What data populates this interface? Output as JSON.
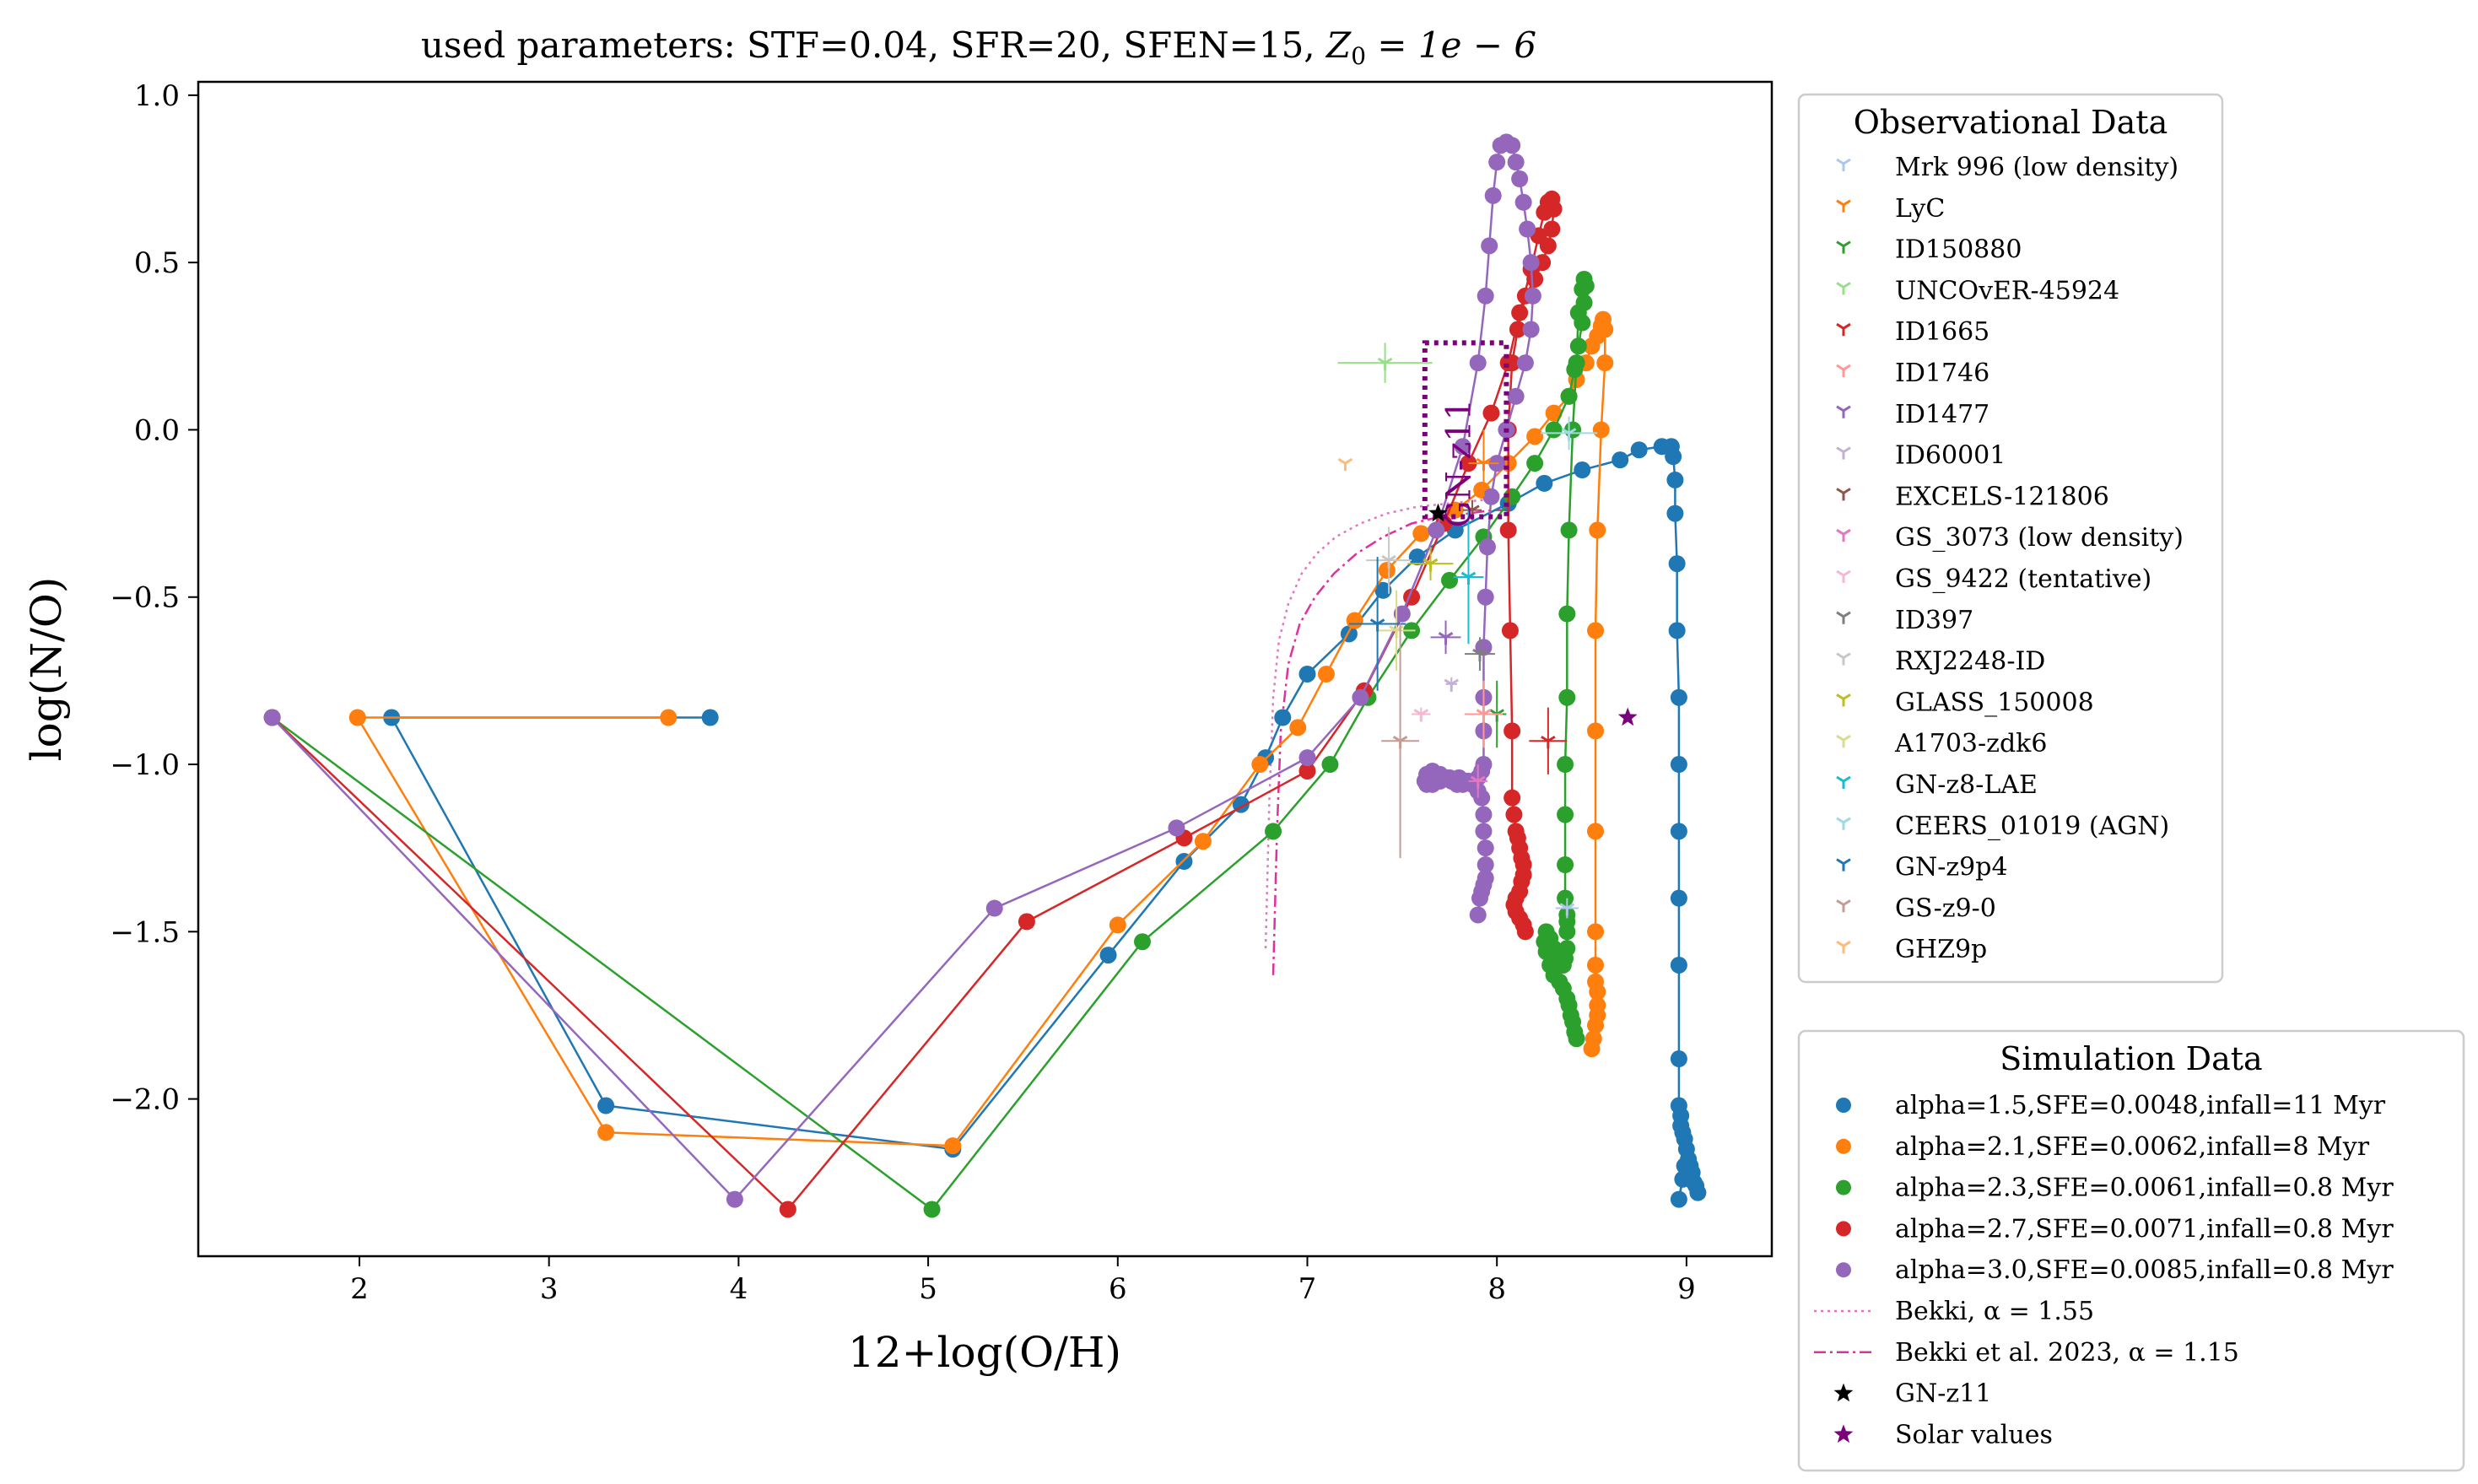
{
  "chart_data": {
    "type": "scatter",
    "title_prefix": "used parameters: STF=0.04, SFR=20, SFEN=15, ",
    "title_math": "Z",
    "title_math_sub": "0",
    "title_math_rest": " = 1e − 6",
    "xlabel": "12+log(O/H)",
    "ylabel": "log(N/O)",
    "xlim": [
      1.15,
      9.45
    ],
    "ylim": [
      -2.47,
      1.04
    ],
    "xticks": [
      2,
      3,
      4,
      5,
      6,
      7,
      8,
      9
    ],
    "xtick_labels": [
      "2",
      "3",
      "4",
      "5",
      "6",
      "7",
      "8",
      "9"
    ],
    "yticks": [
      -2.0,
      -1.5,
      -1.0,
      -0.5,
      0.0,
      0.5,
      1.0
    ],
    "ytick_labels": [
      "−2.0",
      "−1.5",
      "−1.0",
      "−0.5",
      "0.0",
      "0.5",
      "1.0"
    ],
    "grid": false,
    "annotation": {
      "text": "GN-z11",
      "x": 7.86,
      "y": -0.1
    },
    "gnz11_box": {
      "x": [
        7.62,
        8.05
      ],
      "y": [
        -0.26,
        0.26
      ],
      "color": "#7b007b"
    },
    "observational_legend": {
      "title": "Observational Data",
      "placement": "upper right outside",
      "entries": [
        {
          "name": "Mrk 996 (low density)",
          "color": "#aec7e8",
          "x": 8.37,
          "y": -1.43,
          "xerr": 0.06,
          "yerr": 0.03
        },
        {
          "name": "LyC",
          "color": "#ff7f0e",
          "x": 7.93,
          "y": -0.1,
          "xerr": 0.08,
          "yerr": 0.1
        },
        {
          "name": "ID150880",
          "color": "#2ca02c",
          "x": 8.0,
          "y": -0.85,
          "xerr": 0.05,
          "yerr": 0.1
        },
        {
          "name": "UNCOvER-45924",
          "color": "#98df8a",
          "x": 7.41,
          "y": 0.2,
          "xerr": 0.25,
          "yerr": 0.06
        },
        {
          "name": "ID1665",
          "color": "#d62728",
          "x": 8.27,
          "y": -0.93,
          "xerr": 0.1,
          "yerr": 0.1
        },
        {
          "name": "ID1746",
          "color": "#ff9896",
          "x": 7.93,
          "y": -0.85,
          "xerr": 0.1,
          "yerr": 0.1
        },
        {
          "name": "ID1477",
          "color": "#9467bd",
          "x": 7.73,
          "y": -0.62,
          "xerr": 0.08,
          "yerr": 0.05
        },
        {
          "name": "ID60001",
          "color": "#c5b0d5",
          "x": 7.76,
          "y": -0.76,
          "xerr": 0.03,
          "yerr": 0.02
        },
        {
          "name": "EXCELS-121806",
          "color": "#8c564b",
          "x": 7.87,
          "y": -0.24,
          "xerr": 0.05,
          "yerr": 0.03
        },
        {
          "name": "GS_3073 (low density)",
          "color": "#e377c2",
          "x": 7.9,
          "y": -1.05,
          "xerr": 0.05,
          "yerr": 0.05
        },
        {
          "name": "GS_9422 (tentative)",
          "color": "#f7b6d2",
          "x": 7.6,
          "y": -0.85,
          "xerr": 0.05,
          "yerr": 0.02
        },
        {
          "name": "ID397",
          "color": "#7f7f7f",
          "x": 7.91,
          "y": -0.67,
          "xerr": 0.08,
          "yerr": 0.05
        },
        {
          "name": "RXJ2248-ID",
          "color": "#c7c7c7",
          "x": 7.43,
          "y": -0.39,
          "xerr": 0.12,
          "yerr": 0.1
        },
        {
          "name": "GLASS_150008",
          "color": "#bcbd22",
          "x": 7.65,
          "y": -0.4,
          "xerr": 0.12,
          "yerr": 0.05
        },
        {
          "name": "A1703-zdk6",
          "color": "#dbdb8d",
          "x": 7.47,
          "y": -0.6,
          "xerr": 0.1,
          "yerr": 0.12
        },
        {
          "name": "GN-z8-LAE",
          "color": "#17becf",
          "x": 7.85,
          "y": -0.44,
          "xerr": 0.08,
          "yerr": 0.2
        },
        {
          "name": "CEERS_01019 (AGN)",
          "color": "#9edae5",
          "x": 8.38,
          "y": -0.01,
          "xerr": 0.15,
          "yerr": 0.05
        },
        {
          "name": "GN-z9p4",
          "color": "#1f77b4",
          "x": 7.37,
          "y": -0.58,
          "xerr": 0.15,
          "yerr": 0.2
        },
        {
          "name": "GS-z9-0",
          "color": "#c49c94",
          "x": 7.49,
          "y": -0.93,
          "xerr": 0.1,
          "yerr": 0.35
        },
        {
          "name": "GHZ9p",
          "color": "#ffbb78",
          "x": 7.2,
          "y": -0.1,
          "xerr": 0,
          "yerr": 0
        }
      ]
    },
    "simulation_legend": {
      "title": "Simulation Data",
      "placement": "lower right outside",
      "series": [
        {
          "name": "alpha=1.5,SFE=0.0048,infall=11 Myr",
          "color": "#1f77b4",
          "x": [
            3.85,
            2.17,
            3.3,
            5.13,
            5.95,
            6.35,
            6.65,
            6.78,
            6.87,
            7.0,
            7.22,
            7.4,
            7.58,
            7.78,
            8.06,
            8.25,
            8.45,
            8.65,
            8.75,
            8.87,
            8.92,
            8.93,
            8.94,
            8.94,
            8.95,
            8.95,
            8.96,
            8.96,
            8.96,
            8.96,
            8.96,
            8.96,
            8.96,
            8.97,
            8.97,
            8.98,
            8.99,
            9.0,
            9.01,
            9.02,
            9.03,
            9.04,
            9.06,
            9.05,
            9.02,
            8.99,
            8.96,
            8.98
          ],
          "y": [
            -0.86,
            -0.86,
            -2.02,
            -2.15,
            -1.57,
            -1.29,
            -1.12,
            -0.98,
            -0.86,
            -0.73,
            -0.61,
            -0.48,
            -0.38,
            -0.3,
            -0.22,
            -0.16,
            -0.12,
            -0.09,
            -0.06,
            -0.05,
            -0.05,
            -0.08,
            -0.15,
            -0.25,
            -0.4,
            -0.6,
            -0.8,
            -1.0,
            -1.2,
            -1.4,
            -1.6,
            -1.88,
            -2.02,
            -2.05,
            -2.08,
            -2.1,
            -2.12,
            -2.15,
            -2.18,
            -2.2,
            -2.22,
            -2.25,
            -2.28,
            -2.26,
            -2.22,
            -2.2,
            -2.3,
            -2.24
          ]
        },
        {
          "name": "alpha=2.1,SFE=0.0062,infall=8 Myr",
          "color": "#ff7f0e",
          "x": [
            3.63,
            1.99,
            3.3,
            5.13,
            6.0,
            6.45,
            6.75,
            6.95,
            7.1,
            7.25,
            7.42,
            7.6,
            7.78,
            7.92,
            8.06,
            8.2,
            8.3,
            8.38,
            8.42,
            8.47,
            8.5,
            8.53,
            8.55,
            8.56,
            8.57,
            8.57,
            8.55,
            8.53,
            8.52,
            8.52,
            8.52,
            8.52,
            8.52,
            8.52,
            8.53,
            8.53,
            8.53,
            8.52,
            8.51,
            8.5
          ],
          "y": [
            -0.86,
            -0.86,
            -2.1,
            -2.14,
            -1.48,
            -1.23,
            -1.0,
            -0.89,
            -0.73,
            -0.57,
            -0.42,
            -0.31,
            -0.24,
            -0.18,
            -0.1,
            -0.02,
            0.05,
            0.1,
            0.15,
            0.2,
            0.25,
            0.28,
            0.31,
            0.33,
            0.3,
            0.2,
            0.0,
            -0.3,
            -0.6,
            -0.9,
            -1.2,
            -1.5,
            -1.6,
            -1.65,
            -1.68,
            -1.72,
            -1.75,
            -1.78,
            -1.82,
            -1.85
          ]
        },
        {
          "name": "alpha=2.3,SFE=0.0061,infall=0.8 Myr",
          "color": "#2ca02c",
          "x": [
            1.54,
            5.02,
            6.13,
            6.82,
            7.12,
            7.32,
            7.55,
            7.75,
            7.93,
            8.08,
            8.2,
            8.3,
            8.38,
            8.41,
            8.43,
            8.45,
            8.46,
            8.47,
            8.46,
            8.45,
            8.43,
            8.42,
            8.4,
            8.38,
            8.37,
            8.37,
            8.36,
            8.36,
            8.36,
            8.36,
            8.37,
            8.37,
            8.37,
            8.37,
            8.36,
            8.35,
            8.33,
            8.3,
            8.28,
            8.26,
            8.25,
            8.26,
            8.28,
            8.3,
            8.33,
            8.35,
            8.37,
            8.38,
            8.39,
            8.4,
            8.41,
            8.42
          ],
          "y": [
            -0.86,
            -2.33,
            -1.53,
            -1.2,
            -1.0,
            -0.8,
            -0.6,
            -0.45,
            -0.32,
            -0.2,
            -0.1,
            0.0,
            0.1,
            0.18,
            0.25,
            0.32,
            0.38,
            0.43,
            0.45,
            0.42,
            0.35,
            0.2,
            0.0,
            -0.3,
            -0.55,
            -0.8,
            -1.0,
            -1.15,
            -1.3,
            -1.4,
            -1.45,
            -1.47,
            -1.5,
            -1.55,
            -1.58,
            -1.6,
            -1.58,
            -1.55,
            -1.52,
            -1.5,
            -1.53,
            -1.56,
            -1.6,
            -1.63,
            -1.65,
            -1.67,
            -1.7,
            -1.72,
            -1.75,
            -1.77,
            -1.8,
            -1.82
          ]
        },
        {
          "name": "alpha=2.7,SFE=0.0071,infall=0.8 Myr",
          "color": "#d62728",
          "x": [
            1.54,
            4.26,
            5.52,
            6.35,
            7.0,
            7.3,
            7.55,
            7.72,
            7.85,
            7.97,
            8.06,
            8.12,
            8.18,
            8.22,
            8.25,
            8.27,
            8.29,
            8.3,
            8.29,
            8.27,
            8.24,
            8.2,
            8.15,
            8.11,
            8.08,
            8.06,
            8.06,
            8.07,
            8.08,
            8.08,
            8.09,
            8.1,
            8.11,
            8.12,
            8.13,
            8.14,
            8.14,
            8.13,
            8.12,
            8.1,
            8.09,
            8.1,
            8.12,
            8.14,
            8.15
          ],
          "y": [
            -0.86,
            -2.33,
            -1.47,
            -1.22,
            -1.02,
            -0.78,
            -0.5,
            -0.28,
            -0.1,
            0.05,
            0.2,
            0.35,
            0.48,
            0.58,
            0.65,
            0.68,
            0.69,
            0.66,
            0.6,
            0.55,
            0.5,
            0.45,
            0.4,
            0.3,
            0.2,
            0.0,
            -0.3,
            -0.6,
            -0.9,
            -1.1,
            -1.15,
            -1.2,
            -1.22,
            -1.25,
            -1.28,
            -1.3,
            -1.33,
            -1.35,
            -1.38,
            -1.4,
            -1.42,
            -1.44,
            -1.46,
            -1.48,
            -1.5
          ]
        },
        {
          "name": "alpha=3.0,SFE=0.0085,infall=0.8 Myr",
          "color": "#9467bd",
          "x": [
            1.54,
            3.98,
            5.35,
            6.31,
            7.0,
            7.28,
            7.5,
            7.68,
            7.82,
            7.9,
            7.94,
            7.96,
            7.98,
            8.0,
            8.02,
            8.05,
            8.08,
            8.1,
            8.12,
            8.14,
            8.16,
            8.18,
            8.19,
            8.18,
            8.15,
            8.1,
            8.05,
            8.0,
            7.97,
            7.95,
            7.94,
            7.93,
            7.93,
            7.93,
            7.93,
            7.92,
            7.9,
            7.88,
            7.85,
            7.82,
            7.79,
            7.76,
            7.73,
            7.7,
            7.66,
            7.63,
            7.62,
            7.63,
            7.66,
            7.7,
            7.75,
            7.8,
            7.84,
            7.87,
            7.9,
            7.92,
            7.93,
            7.93,
            7.94,
            7.94,
            7.94,
            7.93,
            7.92,
            7.91,
            7.9
          ],
          "y": [
            -0.86,
            -2.3,
            -1.43,
            -1.19,
            -0.98,
            -0.8,
            -0.55,
            -0.3,
            -0.05,
            0.2,
            0.4,
            0.55,
            0.7,
            0.8,
            0.85,
            0.86,
            0.85,
            0.8,
            0.75,
            0.68,
            0.6,
            0.5,
            0.4,
            0.3,
            0.2,
            0.1,
            0.0,
            -0.1,
            -0.2,
            -0.35,
            -0.5,
            -0.65,
            -0.8,
            -0.9,
            -1.0,
            -1.02,
            -1.04,
            -1.05,
            -1.05,
            -1.06,
            -1.06,
            -1.05,
            -1.04,
            -1.03,
            -1.02,
            -1.03,
            -1.05,
            -1.06,
            -1.06,
            -1.05,
            -1.04,
            -1.04,
            -1.05,
            -1.06,
            -1.08,
            -1.1,
            -1.15,
            -1.2,
            -1.25,
            -1.3,
            -1.34,
            -1.36,
            -1.38,
            -1.4,
            -1.45
          ]
        }
      ],
      "extra_entries": [
        {
          "name": "Bekki, α = 1.55",
          "color": "#e377c2",
          "style": "dotted"
        },
        {
          "name": "Bekki et al. 2023, α = 1.15",
          "color": "#e0309f",
          "style": "dashdot"
        },
        {
          "name": "GN-z11",
          "color": "#000000",
          "style": "star"
        },
        {
          "name": "Solar values",
          "color": "#7b007b",
          "style": "star"
        }
      ]
    },
    "bekki_155": {
      "x": [
        6.78,
        6.8,
        6.82,
        6.85,
        6.9,
        6.97,
        7.05,
        7.15,
        7.28,
        7.42,
        7.58,
        7.75,
        7.92,
        8.05
      ],
      "y": [
        -1.55,
        -1.1,
        -0.8,
        -0.63,
        -0.52,
        -0.43,
        -0.37,
        -0.32,
        -0.28,
        -0.25,
        -0.23,
        -0.22,
        -0.21,
        -0.21
      ]
    },
    "bekki_115": {
      "x": [
        6.82,
        6.84,
        6.86,
        6.9,
        6.96,
        7.04,
        7.14,
        7.26,
        7.4,
        7.55,
        7.7,
        7.85,
        7.98,
        8.05
      ],
      "y": [
        -1.63,
        -1.2,
        -0.9,
        -0.7,
        -0.58,
        -0.5,
        -0.43,
        -0.37,
        -0.32,
        -0.28,
        -0.26,
        -0.25,
        -0.24,
        -0.24
      ]
    },
    "gnz11_point": {
      "x": 7.69,
      "y": -0.25
    },
    "solar_point": {
      "x": 8.69,
      "y": -0.86
    }
  }
}
